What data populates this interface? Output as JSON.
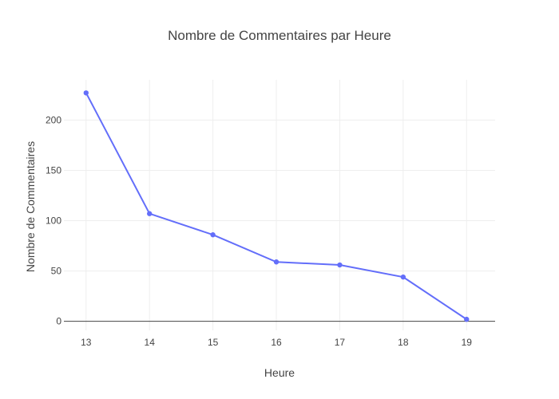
{
  "chart_data": {
    "type": "line",
    "title": "Nombre de Commentaires par Heure",
    "xlabel": "Heure",
    "ylabel": "Nombre de Commentaires",
    "x": [
      13,
      14,
      15,
      16,
      17,
      18,
      19
    ],
    "xlim": [
      12.65,
      19.45
    ],
    "ylim": [
      -9,
      240
    ],
    "yticks": [
      0,
      50,
      100,
      150,
      200
    ],
    "grid": true,
    "legend": "none",
    "series": [
      {
        "color": "#636efa",
        "values": [
          227,
          107,
          86,
          59,
          56,
          44,
          2
        ]
      }
    ]
  }
}
